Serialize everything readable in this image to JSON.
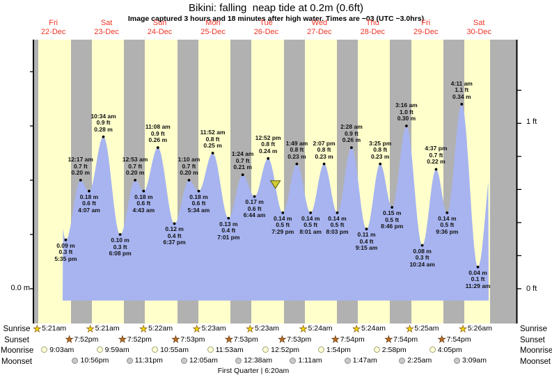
{
  "header": {
    "title": "Bikini: falling  neap tide at 0.2m (0.6ft)",
    "subtitle": "Image captured 3 hours and 18 minutes after high water. Times are −03 (UTC −3.0hrs)"
  },
  "axes": {
    "left_m": "0.0 m",
    "right_1ft": "1 ft",
    "right_0ft": "0 ft"
  },
  "colors": {
    "day_band": "#ffffcc",
    "night_band": "#b1b1b1",
    "tide_fill": "#a7b4f0",
    "date_red": "#ee3224",
    "marker_fill": "#cccc33",
    "marker_stroke": "#5a5a10"
  },
  "chart_data": {
    "type": "area",
    "title": "Bikini: falling  neap tide at 0.2m (0.6ft)",
    "ylabel_left_m": 0.0,
    "ylabel_right_ft": [
      0,
      1
    ],
    "y_range_m": [
      0,
      0.46
    ],
    "left_tick_step_m": 0.1,
    "right_tick_step_ft": 0.2,
    "x_axis": {
      "days": [
        {
          "weekday": "Fri",
          "date": "22-Dec"
        },
        {
          "weekday": "Sat",
          "date": "23-Dec"
        },
        {
          "weekday": "Sun",
          "date": "24-Dec"
        },
        {
          "weekday": "Mon",
          "date": "25-Dec"
        },
        {
          "weekday": "Tue",
          "date": "26-Dec"
        },
        {
          "weekday": "Wed",
          "date": "27-Dec"
        },
        {
          "weekday": "Thu",
          "date": "28-Dec"
        },
        {
          "weekday": "Fri",
          "date": "29-Dec"
        },
        {
          "weekday": "Sat",
          "date": "30-Dec"
        }
      ]
    },
    "tides": [
      {
        "day": 0,
        "time": "5:35 pm",
        "hour": 17.583,
        "m": 0.09,
        "ft": 0.3,
        "type": "low"
      },
      {
        "day": 1,
        "time": "12:17 am",
        "hour": 0.283,
        "m": 0.2,
        "ft": 0.7,
        "type": "high"
      },
      {
        "day": 1,
        "time": "4:07 am",
        "hour": 4.117,
        "m": 0.18,
        "ft": 0.6,
        "type": "low"
      },
      {
        "day": 1,
        "time": "10:34 am",
        "hour": 10.567,
        "m": 0.28,
        "ft": 0.9,
        "type": "high"
      },
      {
        "day": 1,
        "time": "6:08 pm",
        "hour": 18.133,
        "m": 0.1,
        "ft": 0.3,
        "type": "low"
      },
      {
        "day": 2,
        "time": "12:53 am",
        "hour": 0.883,
        "m": 0.2,
        "ft": 0.7,
        "type": "high"
      },
      {
        "day": 2,
        "time": "4:43 am",
        "hour": 4.717,
        "m": 0.18,
        "ft": 0.6,
        "type": "low"
      },
      {
        "day": 2,
        "time": "11:08 am",
        "hour": 11.133,
        "m": 0.26,
        "ft": 0.9,
        "type": "high"
      },
      {
        "day": 2,
        "time": "6:37 pm",
        "hour": 18.617,
        "m": 0.12,
        "ft": 0.4,
        "type": "low"
      },
      {
        "day": 3,
        "time": "1:10 am",
        "hour": 1.167,
        "m": 0.2,
        "ft": 0.7,
        "type": "high"
      },
      {
        "day": 3,
        "time": "5:34 am",
        "hour": 5.567,
        "m": 0.18,
        "ft": 0.6,
        "type": "low"
      },
      {
        "day": 3,
        "time": "11:52 am",
        "hour": 11.867,
        "m": 0.25,
        "ft": 0.8,
        "type": "high"
      },
      {
        "day": 3,
        "time": "7:01 pm",
        "hour": 19.017,
        "m": 0.13,
        "ft": 0.4,
        "type": "low"
      },
      {
        "day": 4,
        "time": "1:24 am",
        "hour": 1.4,
        "m": 0.21,
        "ft": 0.7,
        "type": "high"
      },
      {
        "day": 4,
        "time": "6:44 am",
        "hour": 6.733,
        "m": 0.17,
        "ft": 0.6,
        "type": "low"
      },
      {
        "day": 4,
        "time": "12:52 pm",
        "hour": 12.867,
        "m": 0.24,
        "ft": 0.8,
        "type": "high"
      },
      {
        "day": 4,
        "time": "7:29 pm",
        "hour": 19.483,
        "m": 0.14,
        "ft": 0.5,
        "type": "low"
      },
      {
        "day": 5,
        "time": "1:49 am",
        "hour": 1.817,
        "m": 0.23,
        "ft": 0.8,
        "type": "high"
      },
      {
        "day": 5,
        "time": "8:01 am",
        "hour": 8.017,
        "m": 0.14,
        "ft": 0.5,
        "type": "low"
      },
      {
        "day": 5,
        "time": "2:07 pm",
        "hour": 14.117,
        "m": 0.23,
        "ft": 0.8,
        "type": "high"
      },
      {
        "day": 5,
        "time": "8:03 pm",
        "hour": 20.05,
        "m": 0.14,
        "ft": 0.5,
        "type": "low"
      },
      {
        "day": 6,
        "time": "2:28 am",
        "hour": 2.467,
        "m": 0.26,
        "ft": 0.9,
        "type": "high"
      },
      {
        "day": 6,
        "time": "9:15 am",
        "hour": 9.25,
        "m": 0.11,
        "ft": 0.4,
        "type": "low"
      },
      {
        "day": 6,
        "time": "3:25 pm",
        "hour": 15.417,
        "m": 0.23,
        "ft": 0.8,
        "type": "high"
      },
      {
        "day": 6,
        "time": "8:46 pm",
        "hour": 20.767,
        "m": 0.15,
        "ft": 0.5,
        "type": "low"
      },
      {
        "day": 7,
        "time": "3:16 am",
        "hour": 3.267,
        "m": 0.3,
        "ft": 1.0,
        "type": "high"
      },
      {
        "day": 7,
        "time": "10:24 am",
        "hour": 10.4,
        "m": 0.08,
        "ft": 0.3,
        "type": "low"
      },
      {
        "day": 7,
        "time": "4:37 pm",
        "hour": 16.617,
        "m": 0.22,
        "ft": 0.7,
        "type": "high"
      },
      {
        "day": 7,
        "time": "9:36 pm",
        "hour": 21.6,
        "m": 0.14,
        "ft": 0.5,
        "type": "low"
      },
      {
        "day": 8,
        "time": "4:11 am",
        "hour": 4.183,
        "m": 0.34,
        "ft": 1.1,
        "type": "high"
      },
      {
        "day": 8,
        "time": "11:29 am",
        "hour": 11.483,
        "m": 0.04,
        "ft": 0.1,
        "type": "low"
      }
    ],
    "curve_pre": {
      "day": 0,
      "hour": 12.9,
      "m": 0.22
    },
    "curve_post": {
      "day": 8,
      "hour": 18.5,
      "m": 0.25
    },
    "current_marker": {
      "day": 4,
      "hour": 16.17,
      "m": 0.19,
      "state": "falling"
    }
  },
  "astro": {
    "rows": [
      {
        "label": "Sunrise",
        "icon": "sun-rise",
        "events": [
          {
            "day": 0,
            "hour": 5.35,
            "time": "5:21am"
          },
          {
            "day": 1,
            "hour": 5.35,
            "time": "5:21am"
          },
          {
            "day": 2,
            "hour": 5.367,
            "time": "5:22am"
          },
          {
            "day": 3,
            "hour": 5.383,
            "time": "5:23am"
          },
          {
            "day": 4,
            "hour": 5.383,
            "time": "5:23am"
          },
          {
            "day": 5,
            "hour": 5.4,
            "time": "5:24am"
          },
          {
            "day": 6,
            "hour": 5.4,
            "time": "5:24am"
          },
          {
            "day": 7,
            "hour": 5.417,
            "time": "5:25am"
          },
          {
            "day": 8,
            "hour": 5.433,
            "time": "5:26am"
          }
        ]
      },
      {
        "label": "Sunset",
        "icon": "sun-set",
        "events": [
          {
            "day": 0,
            "hour": 19.867,
            "time": "7:52pm"
          },
          {
            "day": 1,
            "hour": 19.867,
            "time": "7:52pm"
          },
          {
            "day": 2,
            "hour": 19.883,
            "time": "7:53pm"
          },
          {
            "day": 3,
            "hour": 19.883,
            "time": "7:53pm"
          },
          {
            "day": 4,
            "hour": 19.883,
            "time": "7:53pm"
          },
          {
            "day": 5,
            "hour": 19.9,
            "time": "7:54pm"
          },
          {
            "day": 6,
            "hour": 19.9,
            "time": "7:54pm"
          },
          {
            "day": 7,
            "hour": 19.9,
            "time": "7:54pm"
          }
        ]
      },
      {
        "label": "Moonrise",
        "icon": "moon-rise",
        "events": [
          {
            "day": 0,
            "hour": 9.05,
            "time": "9:03am"
          },
          {
            "day": 1,
            "hour": 9.983,
            "time": "9:59am"
          },
          {
            "day": 2,
            "hour": 10.917,
            "time": "10:55am"
          },
          {
            "day": 3,
            "hour": 11.883,
            "time": "11:53am"
          },
          {
            "day": 4,
            "hour": 12.867,
            "time": "12:52pm"
          },
          {
            "day": 5,
            "hour": 13.9,
            "time": "1:54pm"
          },
          {
            "day": 6,
            "hour": 14.967,
            "time": "2:58pm"
          },
          {
            "day": 7,
            "hour": 16.083,
            "time": "4:05pm"
          }
        ]
      },
      {
        "label": "Moonset",
        "icon": "moon-set",
        "events": [
          {
            "day": 0,
            "hour": 22.933,
            "time": "10:56pm"
          },
          {
            "day": 1,
            "hour": 23.517,
            "time": "11:31pm"
          },
          {
            "day": 3,
            "hour": 0.083,
            "time": "12:05am"
          },
          {
            "day": 4,
            "hour": 0.633,
            "time": "12:38am"
          },
          {
            "day": 5,
            "hour": 1.183,
            "time": "1:11am"
          },
          {
            "day": 6,
            "hour": 1.783,
            "time": "1:47am"
          },
          {
            "day": 7,
            "hour": 2.417,
            "time": "2:25am"
          },
          {
            "day": 8,
            "hour": 3.15,
            "time": "3:09am"
          }
        ]
      }
    ],
    "phase_note": "First Quarter | 6:20am"
  }
}
